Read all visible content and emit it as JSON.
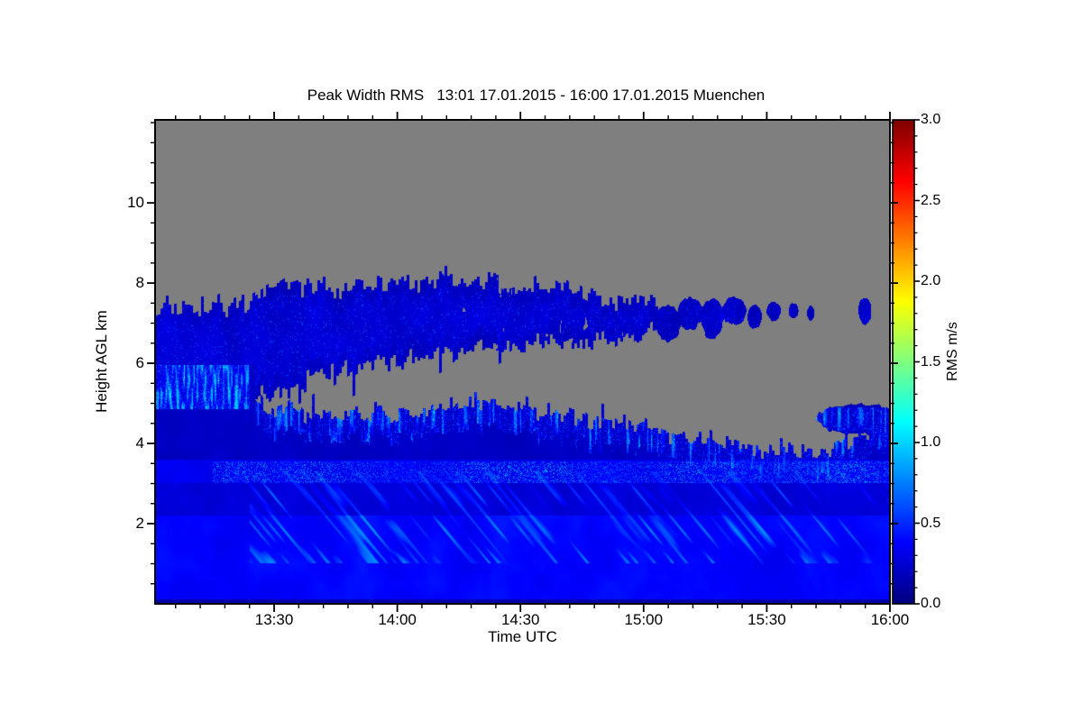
{
  "chart_data": {
    "type": "heatmap",
    "title": "Peak Width RMS   13:01 17.01.2015 - 16:00 17.01.2015 Muenchen",
    "xlabel": "Time UTC",
    "ylabel": "Height AGL km",
    "station": "Muenchen",
    "time_start": "13:01 17.01.2015",
    "time_end": "16:00 17.01.2015",
    "x_range_hours": [
      13.0167,
      16.0
    ],
    "y_range_km": [
      0,
      12.07
    ],
    "x_ticks": [
      {
        "hour": 13.5,
        "label": "13:30"
      },
      {
        "hour": 14.0,
        "label": "14:00"
      },
      {
        "hour": 14.5,
        "label": "14:30"
      },
      {
        "hour": 15.0,
        "label": "15:00"
      },
      {
        "hour": 15.5,
        "label": "15:30"
      },
      {
        "hour": 16.0,
        "label": "16:00"
      }
    ],
    "x_minor_interval_hours": 0.1,
    "y_ticks": [
      {
        "km": 2,
        "label": "2"
      },
      {
        "km": 4,
        "label": "4"
      },
      {
        "km": 6,
        "label": "6"
      },
      {
        "km": 8,
        "label": "8"
      },
      {
        "km": 10,
        "label": "10"
      }
    ],
    "y_minor_interval_km": 0.5,
    "grid": false,
    "colorbar": {
      "label": "RMS m/s",
      "min": 0.0,
      "max": 3.0,
      "tick_values": [
        0.0,
        0.5,
        1.0,
        1.5,
        2.0,
        2.5,
        3.0
      ],
      "tick_labels": [
        "0.0",
        "0.5",
        "1.0",
        "1.5",
        "2.0",
        "2.5",
        "3.0"
      ],
      "minor_interval": 0.1,
      "colormap": "jet",
      "position": "right"
    },
    "colors": {
      "no_data_gray": "#7f7f7f",
      "frame": "#000000",
      "background": "#ffffff",
      "deep_blue_typical": "#0000cc",
      "bright_blue_typical": "#1515e5",
      "speckle_cyan_typical": "#00c8ff"
    },
    "field_model": {
      "description": "Lidar time-height cross-section of peak-width RMS (m/s). Gray = no data / clear air. Two cloud decks: an upper layer (~6-8 km, values ~0.2-0.5 m/s, deep blue) that becomes broken patches after ~15:05 UTC, and a lower deck filling from the ground to ~4-5 km (values ~0.2-0.5 m/s) with bright cyan speckles (~0.7-1.1 m/s) along its ragged top, a speckled bright layer near 3.0-3.5 km, diagonal fallstreaks below 3 km, and cyan streaks at 5-6 km before 13:25. A gray clear-air tongue opens at ~13:25 between the decks and widens toward 16:00.",
      "tongue_start_hour": 13.42,
      "upper_band_end_hour": 15.06,
      "cloud_top_km": [
        [
          13.02,
          7.4
        ],
        [
          13.3,
          7.45
        ],
        [
          13.55,
          7.9
        ],
        [
          13.8,
          7.85
        ],
        [
          14.0,
          8.0
        ],
        [
          14.2,
          8.1
        ],
        [
          14.45,
          7.95
        ],
        [
          14.6,
          8.0
        ],
        [
          14.8,
          7.65
        ],
        [
          15.06,
          7.55
        ]
      ],
      "upper_bottom_km": [
        [
          13.42,
          5.15
        ],
        [
          13.6,
          5.55
        ],
        [
          13.8,
          5.85
        ],
        [
          14.0,
          6.05
        ],
        [
          14.3,
          6.35
        ],
        [
          14.6,
          6.5
        ],
        [
          14.9,
          6.65
        ],
        [
          15.06,
          6.9
        ]
      ],
      "lower_top_km": [
        [
          13.02,
          7.4
        ],
        [
          13.42,
          5.1
        ],
        [
          13.5,
          4.7
        ],
        [
          13.58,
          4.95
        ],
        [
          13.65,
          4.65
        ],
        [
          13.8,
          4.7
        ],
        [
          14.0,
          4.8
        ],
        [
          14.15,
          4.85
        ],
        [
          14.3,
          5.05
        ],
        [
          14.45,
          4.95
        ],
        [
          14.6,
          4.8
        ],
        [
          14.75,
          4.65
        ],
        [
          14.9,
          4.5
        ],
        [
          15.05,
          4.3
        ],
        [
          15.2,
          4.1
        ],
        [
          15.35,
          3.95
        ],
        [
          15.5,
          3.85
        ],
        [
          15.65,
          3.8
        ],
        [
          15.8,
          3.95
        ],
        [
          15.95,
          4.3
        ],
        [
          16.0,
          4.6
        ]
      ],
      "upper_patches": [
        [
          15.1,
          7.0,
          0.05,
          0.45
        ],
        [
          15.19,
          7.25,
          0.05,
          0.4
        ],
        [
          15.28,
          7.1,
          0.045,
          0.5
        ],
        [
          15.37,
          7.3,
          0.05,
          0.35
        ],
        [
          15.45,
          7.15,
          0.03,
          0.3
        ],
        [
          15.53,
          7.3,
          0.028,
          0.25
        ],
        [
          15.61,
          7.3,
          0.02,
          0.2
        ],
        [
          15.68,
          7.25,
          0.016,
          0.18
        ],
        [
          15.9,
          7.3,
          0.026,
          0.32
        ]
      ],
      "lower_patches": [
        [
          15.88,
          4.6,
          0.17,
          0.38
        ]
      ],
      "bright_layer_km": [
        3.0,
        3.55
      ],
      "left_streak_zone": {
        "t_end": 13.4,
        "km": [
          4.85,
          5.95
        ]
      },
      "value_levels_mps": {
        "lower_base": 0.3,
        "dark_band": 0.16,
        "upper_band": 0.22,
        "boundary_speckle_max": 1.1
      }
    }
  }
}
